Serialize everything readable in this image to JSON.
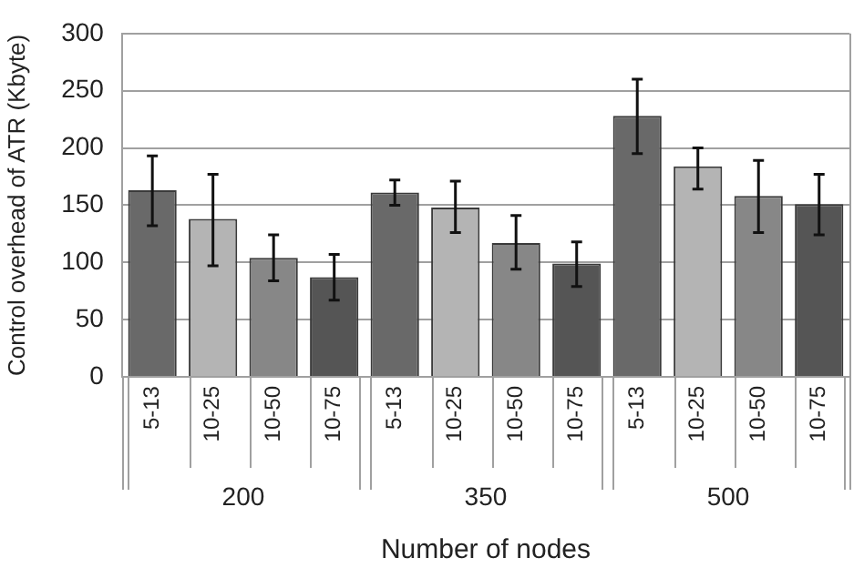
{
  "chart_data": {
    "type": "bar",
    "xlabel": "Number of nodes",
    "ylabel": "Control overhead of ATR (Kbyte)",
    "categories": [
      "200",
      "350",
      "500"
    ],
    "series": [
      {
        "name": "5-13",
        "color": "#696969",
        "values": [
          163,
          161,
          228
        ],
        "errors": [
          [
            132,
            193
          ],
          [
            150,
            172
          ],
          [
            195,
            260
          ]
        ]
      },
      {
        "name": "10-25",
        "color": "#b4b4b4",
        "values": [
          138,
          148,
          184
        ],
        "errors": [
          [
            97,
            177
          ],
          [
            126,
            171
          ],
          [
            164,
            200
          ]
        ]
      },
      {
        "name": "10-50",
        "color": "#878787",
        "values": [
          104,
          117,
          158
        ],
        "errors": [
          [
            84,
            124
          ],
          [
            94,
            141
          ],
          [
            126,
            189
          ]
        ]
      },
      {
        "name": "10-75",
        "color": "#555555",
        "values": [
          87,
          99,
          151
        ],
        "errors": [
          [
            67,
            107
          ],
          [
            79,
            118
          ],
          [
            124,
            177
          ]
        ]
      }
    ],
    "ylim": [
      0,
      300
    ],
    "yticks": [
      0,
      50,
      100,
      150,
      200,
      250,
      300
    ],
    "grid": "y",
    "legend": false
  }
}
